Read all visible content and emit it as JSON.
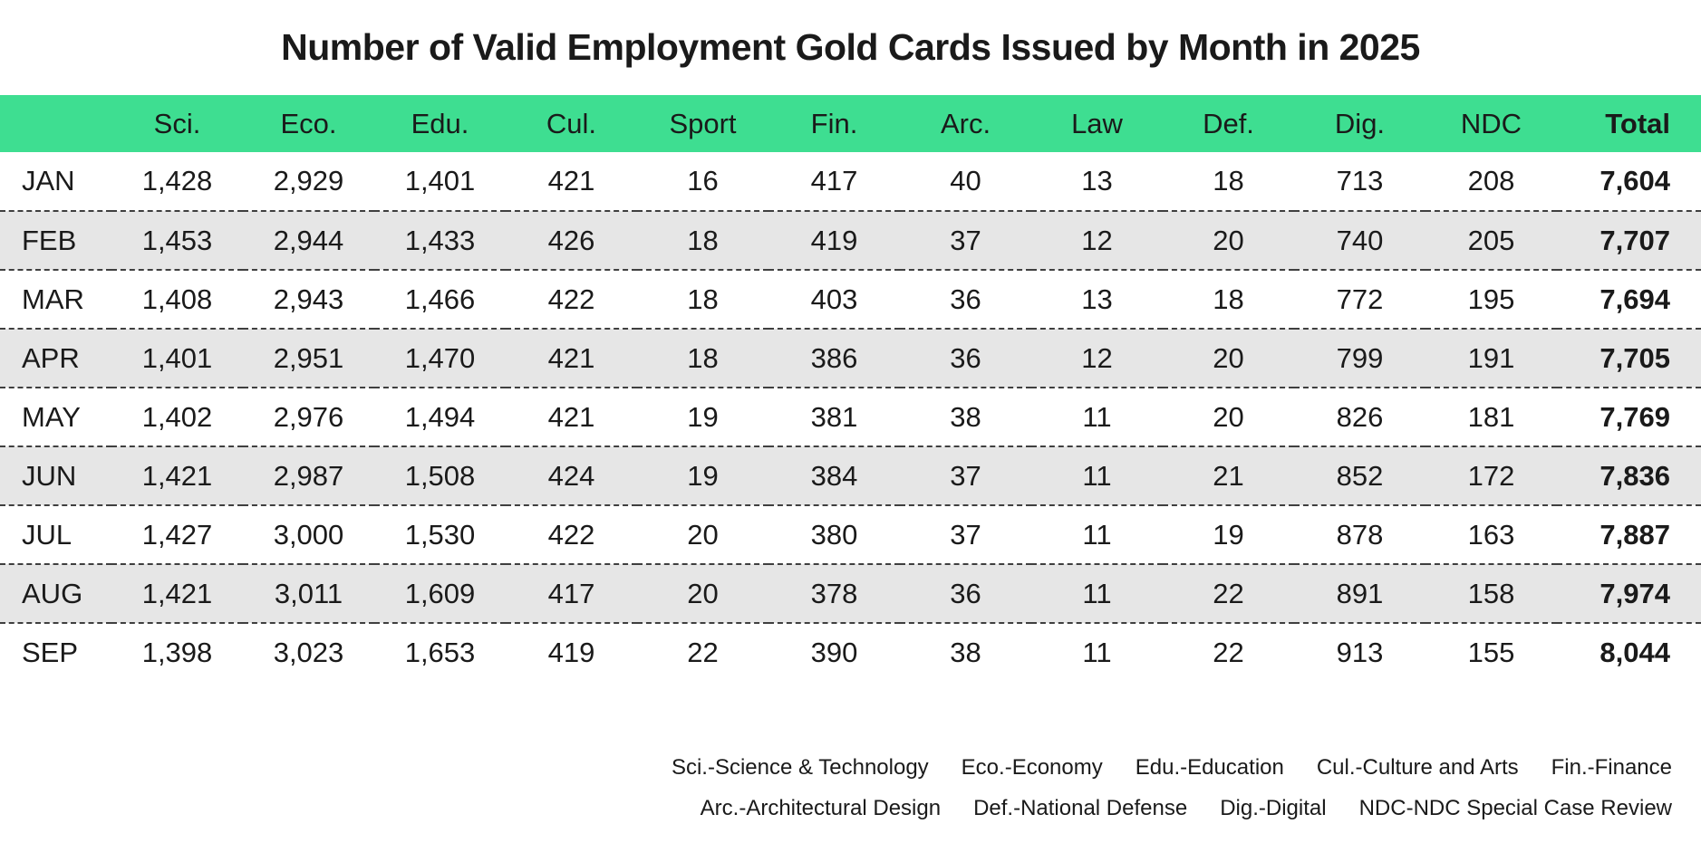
{
  "title": "Number of Valid Employment Gold Cards Issued by Month in 2025",
  "chart_data": {
    "type": "table",
    "title": "Number of Valid Employment Gold Cards Issued by Month in 2025",
    "columns": [
      "Sci.",
      "Eco.",
      "Edu.",
      "Cul.",
      "Sport",
      "Fin.",
      "Arc.",
      "Law",
      "Def.",
      "Dig.",
      "NDC",
      "Total"
    ],
    "rows": [
      {
        "month": "JAN",
        "values": [
          "1,428",
          "2,929",
          "1,401",
          "421",
          "16",
          "417",
          "40",
          "13",
          "18",
          "713",
          "208"
        ],
        "total": "7,604"
      },
      {
        "month": "FEB",
        "values": [
          "1,453",
          "2,944",
          "1,433",
          "426",
          "18",
          "419",
          "37",
          "12",
          "20",
          "740",
          "205"
        ],
        "total": "7,707"
      },
      {
        "month": "MAR",
        "values": [
          "1,408",
          "2,943",
          "1,466",
          "422",
          "18",
          "403",
          "36",
          "13",
          "18",
          "772",
          "195"
        ],
        "total": "7,694"
      },
      {
        "month": "APR",
        "values": [
          "1,401",
          "2,951",
          "1,470",
          "421",
          "18",
          "386",
          "36",
          "12",
          "20",
          "799",
          "191"
        ],
        "total": "7,705"
      },
      {
        "month": "MAY",
        "values": [
          "1,402",
          "2,976",
          "1,494",
          "421",
          "19",
          "381",
          "38",
          "11",
          "20",
          "826",
          "181"
        ],
        "total": "7,769"
      },
      {
        "month": "JUN",
        "values": [
          "1,421",
          "2,987",
          "1,508",
          "424",
          "19",
          "384",
          "37",
          "11",
          "21",
          "852",
          "172"
        ],
        "total": "7,836"
      },
      {
        "month": "JUL",
        "values": [
          "1,427",
          "3,000",
          "1,530",
          "422",
          "20",
          "380",
          "37",
          "11",
          "19",
          "878",
          "163"
        ],
        "total": "7,887"
      },
      {
        "month": "AUG",
        "values": [
          "1,421",
          "3,011",
          "1,609",
          "417",
          "20",
          "378",
          "36",
          "11",
          "22",
          "891",
          "158"
        ],
        "total": "7,974"
      },
      {
        "month": "SEP",
        "values": [
          "1,398",
          "3,023",
          "1,653",
          "419",
          "22",
          "390",
          "38",
          "11",
          "22",
          "913",
          "155"
        ],
        "total": "8,044"
      }
    ]
  },
  "legend": {
    "line1": [
      "Sci.-Science & Technology",
      "Eco.-Economy",
      "Edu.-Education",
      "Cul.-Culture and Arts",
      "Fin.-Finance"
    ],
    "line2": [
      "Arc.-Architectural Design",
      "Def.-National Defense",
      "Dig.-Digital",
      "NDC-NDC Special Case Review"
    ]
  },
  "colors": {
    "header_bg": "#3ede91",
    "row_alt_bg": "#e6e6e6",
    "text": "#1a1a1a"
  }
}
